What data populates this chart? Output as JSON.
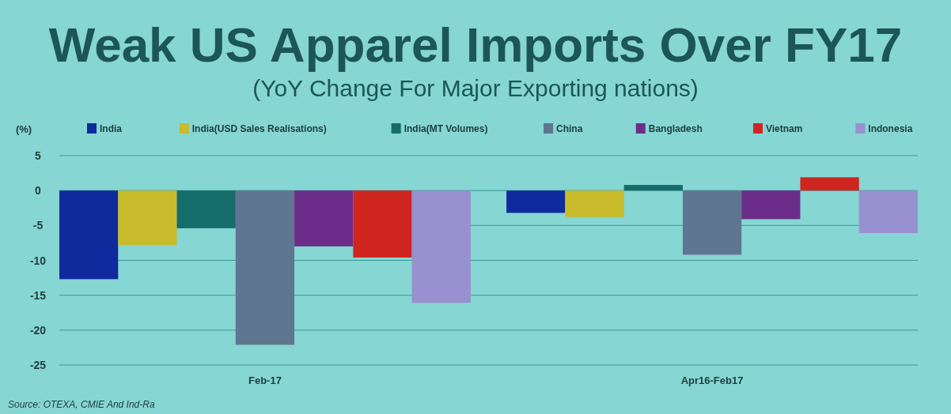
{
  "chart_data": {
    "type": "bar",
    "title": "Weak US Apparel Imports Over FY17",
    "subtitle": "(YoY Change For Major Exporting nations)",
    "ylabel": "(%)",
    "categories": [
      "Feb-17",
      "Apr16-Feb17"
    ],
    "series": [
      {
        "name": "India",
        "color": "#0f2a9c",
        "values": [
          -12.7,
          -3.2
        ]
      },
      {
        "name": "India(USD Sales Realisations)",
        "color": "#c9bb2c",
        "values": [
          -7.8,
          -3.8
        ]
      },
      {
        "name": "India(MT Volumes)",
        "color": "#166b6b",
        "values": [
          -5.4,
          0.8
        ]
      },
      {
        "name": "China",
        "color": "#5f7690",
        "values": [
          -22.1,
          -9.2
        ]
      },
      {
        "name": "Bangladesh",
        "color": "#6c2d8a",
        "values": [
          -8.0,
          -4.1
        ]
      },
      {
        "name": "Vietnam",
        "color": "#d02620",
        "values": [
          -9.6,
          1.9
        ]
      },
      {
        "name": "Indonesia",
        "color": "#9890cf",
        "values": [
          -16.1,
          -6.1
        ]
      }
    ],
    "ylim": [
      -25,
      5
    ],
    "yticks": [
      5,
      0,
      -5,
      -10,
      -15,
      -20,
      -25
    ],
    "grid": "y",
    "legend": "top",
    "annotations": [
      "Source: OTEXA, CMIE And Ind-Ra"
    ]
  }
}
